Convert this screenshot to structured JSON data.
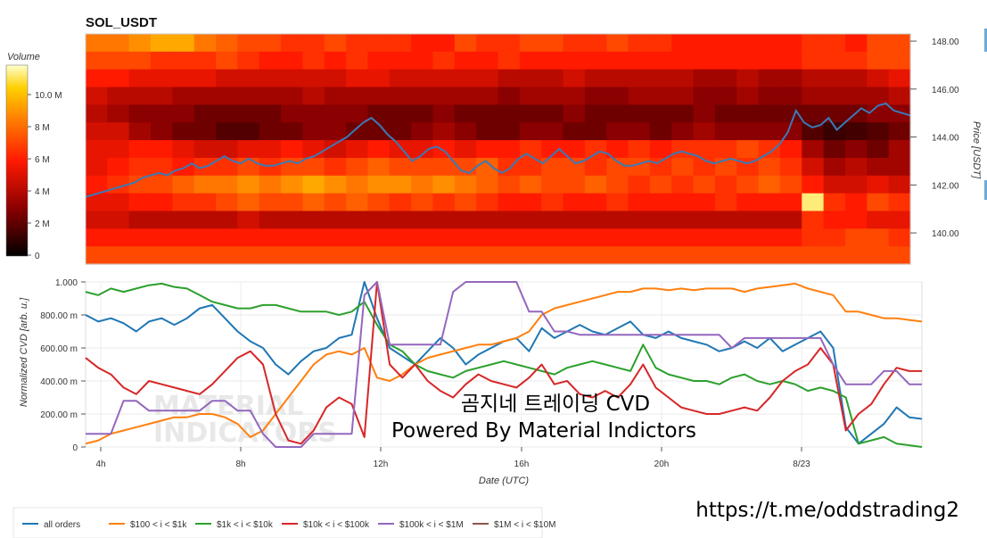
{
  "chart_data": [
    {
      "type": "heatmap",
      "title": "SOL_USDT",
      "colorbar_title": "Volume",
      "colorbar_ticks": [
        "0",
        "2 M",
        "4 M",
        "6 M",
        "8 M",
        "10.0 M"
      ],
      "ylabel": "Price [USDT]",
      "y_ticks": [
        "140.00",
        "142.00",
        "144.00",
        "146.00",
        "148.00"
      ],
      "ylim": [
        138.7,
        148.3
      ],
      "price_series_name": "",
      "price": [
        141.5,
        141.6,
        141.7,
        141.8,
        141.9,
        142.0,
        142.1,
        142.3,
        142.4,
        142.5,
        142.4,
        142.6,
        142.7,
        142.9,
        142.7,
        142.8,
        143.0,
        143.2,
        143.0,
        142.9,
        143.1,
        142.9,
        142.8,
        142.8,
        142.9,
        143.0,
        142.9,
        143.1,
        143.2,
        143.4,
        143.6,
        143.8,
        144.0,
        144.3,
        144.6,
        144.8,
        144.5,
        144.1,
        143.8,
        143.4,
        143.0,
        143.2,
        143.5,
        143.6,
        143.4,
        143.0,
        142.6,
        142.5,
        142.8,
        143.0,
        142.7,
        142.5,
        142.7,
        143.1,
        143.3,
        143.1,
        142.9,
        143.2,
        143.5,
        143.2,
        142.9,
        143.0,
        143.2,
        143.4,
        143.3,
        143.0,
        142.8,
        142.8,
        142.9,
        143.0,
        142.9,
        143.1,
        143.3,
        143.4,
        143.3,
        143.2,
        143.0,
        142.9,
        143.0,
        143.1,
        143.0,
        142.9,
        143.0,
        143.2,
        143.4,
        143.7,
        144.2,
        145.1,
        144.6,
        144.4,
        144.5,
        144.8,
        144.3,
        144.6,
        144.9,
        145.2,
        145.0,
        145.3,
        145.4,
        145.1,
        145.0,
        144.9
      ],
      "heat_rows": [
        [
          0.7,
          0.7,
          0.75,
          0.8,
          0.8,
          0.7,
          0.65,
          0.6,
          0.6,
          0.55,
          0.55,
          0.6,
          0.55,
          0.55,
          0.55,
          0.5,
          0.5,
          0.6,
          0.55,
          0.55,
          0.6,
          0.6,
          0.55,
          0.55,
          0.6,
          0.55,
          0.55,
          0.5,
          0.5,
          0.5,
          0.5,
          0.5,
          0.5,
          0.55,
          0.55,
          0.5,
          0.6,
          0.6
        ],
        [
          0.6,
          0.6,
          0.6,
          0.55,
          0.55,
          0.55,
          0.6,
          0.55,
          0.5,
          0.5,
          0.55,
          0.5,
          0.55,
          0.5,
          0.5,
          0.5,
          0.55,
          0.5,
          0.5,
          0.55,
          0.5,
          0.5,
          0.5,
          0.5,
          0.5,
          0.5,
          0.5,
          0.5,
          0.5,
          0.5,
          0.5,
          0.5,
          0.5,
          0.55,
          0.55,
          0.55,
          0.6,
          0.6
        ],
        [
          0.5,
          0.5,
          0.45,
          0.45,
          0.45,
          0.45,
          0.4,
          0.4,
          0.4,
          0.4,
          0.4,
          0.4,
          0.45,
          0.45,
          0.4,
          0.4,
          0.4,
          0.4,
          0.4,
          0.35,
          0.35,
          0.35,
          0.4,
          0.35,
          0.35,
          0.35,
          0.35,
          0.35,
          0.3,
          0.3,
          0.35,
          0.3,
          0.3,
          0.35,
          0.35,
          0.35,
          0.4,
          0.45
        ],
        [
          0.4,
          0.35,
          0.35,
          0.35,
          0.3,
          0.3,
          0.3,
          0.3,
          0.3,
          0.3,
          0.35,
          0.3,
          0.3,
          0.3,
          0.3,
          0.3,
          0.3,
          0.3,
          0.3,
          0.25,
          0.3,
          0.3,
          0.3,
          0.25,
          0.25,
          0.3,
          0.3,
          0.3,
          0.25,
          0.25,
          0.3,
          0.25,
          0.25,
          0.3,
          0.3,
          0.3,
          0.3,
          0.35
        ],
        [
          0.35,
          0.3,
          0.25,
          0.25,
          0.25,
          0.2,
          0.2,
          0.2,
          0.2,
          0.25,
          0.25,
          0.25,
          0.25,
          0.2,
          0.2,
          0.2,
          0.25,
          0.2,
          0.2,
          0.2,
          0.2,
          0.2,
          0.25,
          0.2,
          0.2,
          0.2,
          0.2,
          0.2,
          0.25,
          0.2,
          0.2,
          0.2,
          0.2,
          0.2,
          0.2,
          0.2,
          0.25,
          0.25
        ],
        [
          0.4,
          0.4,
          0.3,
          0.25,
          0.2,
          0.2,
          0.15,
          0.15,
          0.2,
          0.2,
          0.25,
          0.25,
          0.2,
          0.2,
          0.2,
          0.25,
          0.3,
          0.25,
          0.2,
          0.2,
          0.25,
          0.25,
          0.2,
          0.2,
          0.25,
          0.25,
          0.2,
          0.25,
          0.3,
          0.25,
          0.25,
          0.25,
          0.25,
          0.15,
          0.1,
          0.12,
          0.15,
          0.2
        ],
        [
          0.45,
          0.45,
          0.5,
          0.5,
          0.45,
          0.4,
          0.4,
          0.45,
          0.45,
          0.5,
          0.45,
          0.4,
          0.45,
          0.5,
          0.45,
          0.45,
          0.5,
          0.45,
          0.5,
          0.5,
          0.55,
          0.5,
          0.5,
          0.55,
          0.5,
          0.55,
          0.5,
          0.55,
          0.55,
          0.55,
          0.6,
          0.55,
          0.5,
          0.3,
          0.2,
          0.25,
          0.2,
          0.3
        ],
        [
          0.45,
          0.5,
          0.55,
          0.55,
          0.5,
          0.55,
          0.55,
          0.6,
          0.55,
          0.6,
          0.6,
          0.55,
          0.6,
          0.65,
          0.6,
          0.6,
          0.6,
          0.6,
          0.65,
          0.55,
          0.55,
          0.6,
          0.6,
          0.55,
          0.6,
          0.6,
          0.55,
          0.6,
          0.55,
          0.6,
          0.55,
          0.6,
          0.55,
          0.4,
          0.3,
          0.35,
          0.3,
          0.3
        ],
        [
          0.5,
          0.55,
          0.6,
          0.6,
          0.65,
          0.7,
          0.7,
          0.75,
          0.7,
          0.75,
          0.8,
          0.75,
          0.7,
          0.75,
          0.75,
          0.7,
          0.75,
          0.7,
          0.65,
          0.6,
          0.65,
          0.6,
          0.6,
          0.65,
          0.6,
          0.55,
          0.6,
          0.55,
          0.6,
          0.55,
          0.6,
          0.65,
          0.6,
          0.5,
          0.4,
          0.4,
          0.45,
          0.4
        ],
        [
          0.45,
          0.45,
          0.5,
          0.5,
          0.55,
          0.55,
          0.6,
          0.65,
          0.6,
          0.6,
          0.65,
          0.6,
          0.65,
          0.6,
          0.55,
          0.6,
          0.55,
          0.6,
          0.55,
          0.5,
          0.5,
          0.55,
          0.5,
          0.5,
          0.55,
          0.5,
          0.5,
          0.5,
          0.5,
          0.55,
          0.5,
          0.5,
          0.5,
          0.95,
          0.55,
          0.5,
          0.6,
          0.55
        ],
        [
          0.4,
          0.4,
          0.35,
          0.35,
          0.35,
          0.35,
          0.35,
          0.4,
          0.35,
          0.35,
          0.35,
          0.35,
          0.35,
          0.35,
          0.35,
          0.35,
          0.35,
          0.35,
          0.35,
          0.35,
          0.35,
          0.35,
          0.35,
          0.35,
          0.35,
          0.35,
          0.35,
          0.35,
          0.35,
          0.35,
          0.35,
          0.35,
          0.35,
          0.55,
          0.5,
          0.5,
          0.45,
          0.45
        ],
        [
          0.5,
          0.5,
          0.5,
          0.5,
          0.5,
          0.5,
          0.5,
          0.5,
          0.5,
          0.5,
          0.5,
          0.5,
          0.5,
          0.5,
          0.5,
          0.5,
          0.5,
          0.5,
          0.5,
          0.5,
          0.5,
          0.5,
          0.5,
          0.5,
          0.5,
          0.5,
          0.5,
          0.5,
          0.5,
          0.5,
          0.5,
          0.5,
          0.5,
          0.55,
          0.55,
          0.6,
          0.6,
          0.55
        ],
        [
          0.6,
          0.6,
          0.6,
          0.6,
          0.6,
          0.6,
          0.6,
          0.6,
          0.6,
          0.6,
          0.6,
          0.6,
          0.6,
          0.6,
          0.6,
          0.6,
          0.6,
          0.6,
          0.6,
          0.6,
          0.6,
          0.6,
          0.6,
          0.6,
          0.6,
          0.6,
          0.6,
          0.6,
          0.6,
          0.6,
          0.6,
          0.6,
          0.6,
          0.6,
          0.6,
          0.6,
          0.6,
          0.6
        ]
      ]
    },
    {
      "type": "line",
      "ylabel": "Normalized CVD [arb. u.]",
      "xlabel": "Date (UTC)",
      "ylim": [
        0,
        1
      ],
      "x_ticks": [
        "4h",
        "8h",
        "12h",
        "16h",
        "20h",
        "8/23"
      ],
      "y_ticks": [
        "0",
        "200.00 m",
        "400.00 m",
        "600.00 m",
        "800.00 m",
        "1.000"
      ],
      "series": [
        {
          "name": "all orders",
          "color": "#1f77b4",
          "values": [
            0.8,
            0.76,
            0.78,
            0.75,
            0.7,
            0.76,
            0.78,
            0.74,
            0.78,
            0.84,
            0.86,
            0.78,
            0.7,
            0.64,
            0.6,
            0.5,
            0.44,
            0.52,
            0.58,
            0.6,
            0.66,
            0.68,
            1.0,
            0.78,
            0.6,
            0.55,
            0.5,
            0.58,
            0.66,
            0.6,
            0.5,
            0.56,
            0.6,
            0.64,
            0.66,
            0.58,
            0.72,
            0.66,
            0.7,
            0.74,
            0.7,
            0.68,
            0.72,
            0.76,
            0.68,
            0.66,
            0.7,
            0.66,
            0.64,
            0.62,
            0.58,
            0.6,
            0.64,
            0.6,
            0.66,
            0.58,
            0.62,
            0.66,
            0.7,
            0.6,
            0.12,
            0.02,
            0.08,
            0.14,
            0.24,
            0.18,
            0.17
          ]
        },
        {
          "name": "$100 < i < $1k",
          "color": "#ff7f0e",
          "values": [
            0.02,
            0.04,
            0.08,
            0.1,
            0.12,
            0.14,
            0.16,
            0.18,
            0.18,
            0.2,
            0.2,
            0.18,
            0.14,
            0.06,
            0.1,
            0.2,
            0.3,
            0.4,
            0.5,
            0.56,
            0.58,
            0.56,
            0.6,
            0.42,
            0.4,
            0.44,
            0.5,
            0.54,
            0.56,
            0.58,
            0.6,
            0.62,
            0.62,
            0.64,
            0.66,
            0.7,
            0.8,
            0.84,
            0.86,
            0.88,
            0.9,
            0.92,
            0.94,
            0.94,
            0.96,
            0.96,
            0.95,
            0.96,
            0.95,
            0.96,
            0.96,
            0.96,
            0.94,
            0.96,
            0.97,
            0.98,
            0.99,
            0.96,
            0.94,
            0.92,
            0.82,
            0.82,
            0.8,
            0.78,
            0.78,
            0.77,
            0.76
          ]
        },
        {
          "name": "$1k < i < $10k",
          "color": "#2ca02c",
          "values": [
            0.94,
            0.92,
            0.96,
            0.94,
            0.96,
            0.98,
            0.99,
            0.97,
            0.96,
            0.92,
            0.88,
            0.86,
            0.84,
            0.84,
            0.86,
            0.86,
            0.84,
            0.82,
            0.82,
            0.82,
            0.8,
            0.82,
            0.88,
            0.74,
            0.62,
            0.58,
            0.5,
            0.46,
            0.44,
            0.42,
            0.46,
            0.48,
            0.5,
            0.52,
            0.5,
            0.48,
            0.46,
            0.44,
            0.48,
            0.5,
            0.52,
            0.5,
            0.48,
            0.46,
            0.62,
            0.48,
            0.44,
            0.42,
            0.4,
            0.4,
            0.38,
            0.42,
            0.44,
            0.4,
            0.38,
            0.4,
            0.38,
            0.34,
            0.36,
            0.34,
            0.3,
            0.02,
            0.04,
            0.06,
            0.02,
            0.01,
            0.0
          ]
        },
        {
          "name": "$10k < i < $100k",
          "color": "#d62728",
          "values": [
            0.54,
            0.48,
            0.44,
            0.36,
            0.32,
            0.4,
            0.38,
            0.36,
            0.34,
            0.32,
            0.38,
            0.46,
            0.54,
            0.58,
            0.5,
            0.2,
            0.04,
            0.02,
            0.1,
            0.24,
            0.3,
            0.26,
            0.06,
            1.0,
            0.5,
            0.42,
            0.5,
            0.4,
            0.34,
            0.3,
            0.38,
            0.44,
            0.4,
            0.38,
            0.36,
            0.42,
            0.5,
            0.38,
            0.4,
            0.32,
            0.3,
            0.34,
            0.3,
            0.38,
            0.5,
            0.36,
            0.3,
            0.24,
            0.22,
            0.2,
            0.2,
            0.22,
            0.24,
            0.22,
            0.3,
            0.4,
            0.46,
            0.5,
            0.6,
            0.5,
            0.1,
            0.2,
            0.26,
            0.38,
            0.48,
            0.46,
            0.46
          ]
        },
        {
          "name": "$100k < i < $1M",
          "color": "#9467bd",
          "values": [
            0.08,
            0.08,
            0.08,
            0.28,
            0.28,
            0.22,
            0.22,
            0.22,
            0.22,
            0.22,
            0.28,
            0.28,
            0.22,
            0.22,
            0.08,
            0.0,
            0.0,
            0.0,
            0.08,
            0.08,
            0.08,
            0.08,
            0.92,
            1.0,
            0.62,
            0.62,
            0.62,
            0.62,
            0.62,
            0.94,
            1.0,
            1.0,
            1.0,
            1.0,
            1.0,
            0.82,
            0.82,
            0.7,
            0.7,
            0.68,
            0.68,
            0.68,
            0.68,
            0.68,
            0.68,
            0.68,
            0.68,
            0.68,
            0.68,
            0.68,
            0.68,
            0.6,
            0.66,
            0.66,
            0.66,
            0.66,
            0.66,
            0.66,
            0.66,
            0.5,
            0.38,
            0.38,
            0.38,
            0.46,
            0.46,
            0.38,
            0.38
          ]
        },
        {
          "name": "$1M < i < $10M",
          "color": "#8c564b",
          "values": []
        }
      ]
    }
  ],
  "overlay": {
    "line1": "곰지네 트레이딩 CVD",
    "line2": "Powered By Material Indictors",
    "link": "https://t.me/oddstrading2"
  },
  "watermark": {
    "line1": "MATERIAL",
    "line2": "INDICATORS"
  },
  "colors": {
    "all_orders": "#1f77b4",
    "orange": "#ff7f0e",
    "green": "#2ca02c",
    "red": "#d62728",
    "purple": "#9467bd",
    "brown": "#8c564b"
  }
}
